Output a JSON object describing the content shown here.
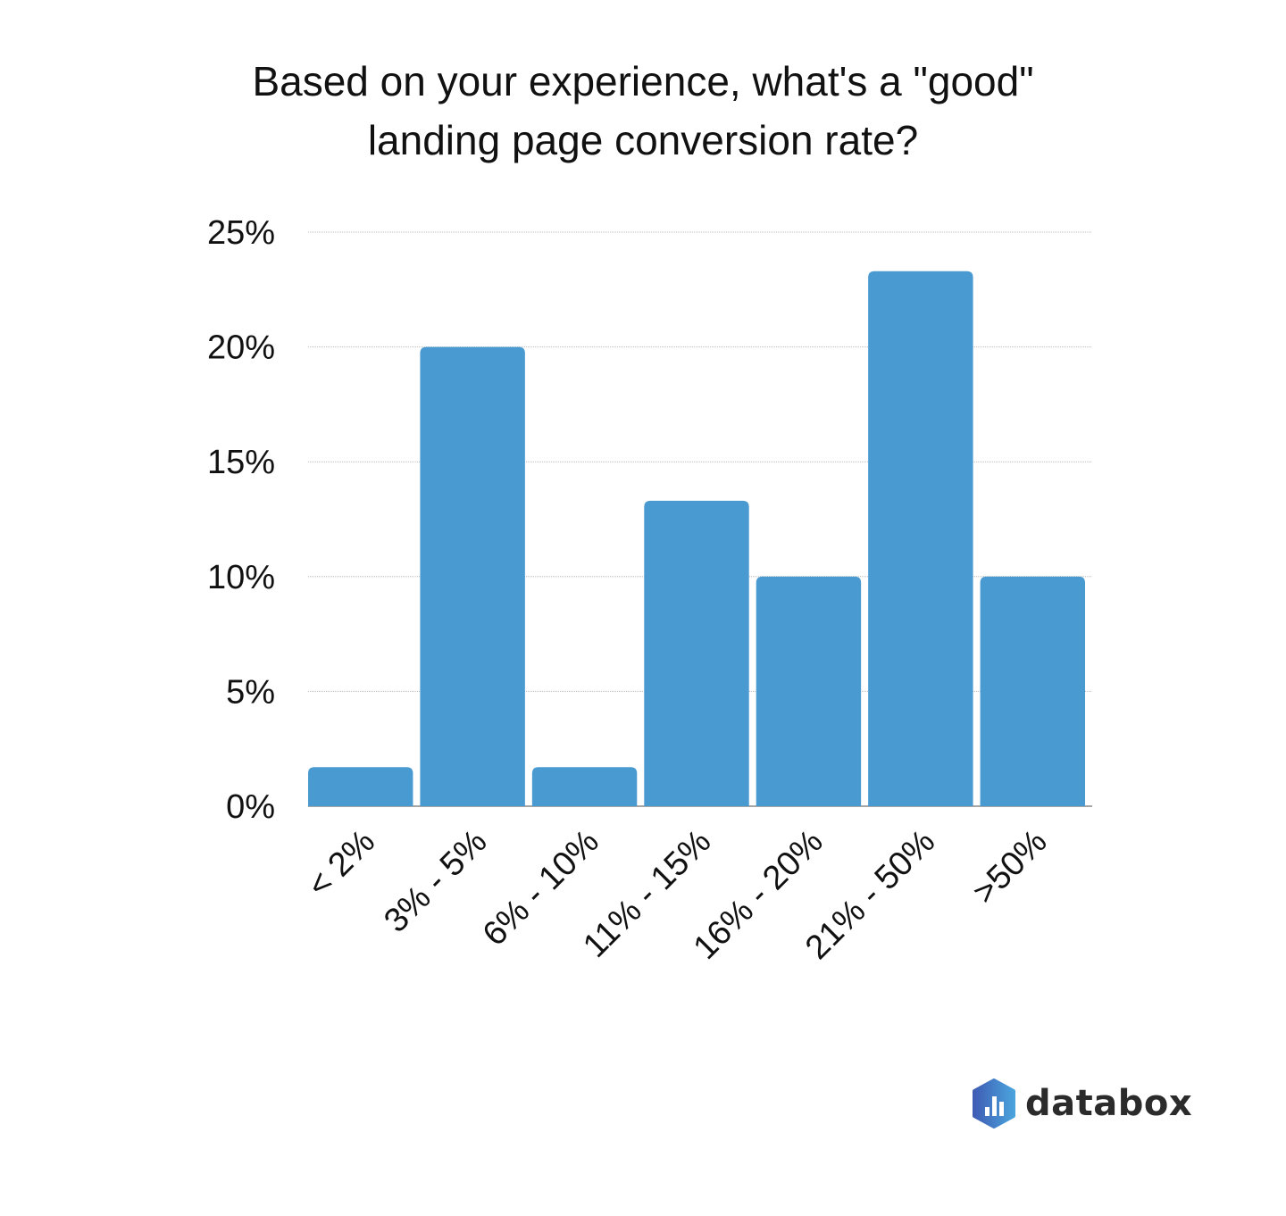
{
  "chart_data": {
    "type": "bar",
    "title_lines": [
      "Based on your experience, what's a \"good\"",
      "landing page conversion rate?"
    ],
    "categories": [
      "< 2%",
      "3% - 5%",
      "6% - 10%",
      "11% - 15%",
      "16% - 20%",
      "21% - 50%",
      ">50%"
    ],
    "values": [
      1.7,
      20,
      1.7,
      13.3,
      10,
      23.3,
      10
    ],
    "ylim": [
      0,
      25
    ],
    "yticks": [
      0,
      5,
      10,
      15,
      20,
      25
    ],
    "ytick_labels": [
      "0%",
      "5%",
      "10%",
      "15%",
      "20%",
      "25%"
    ],
    "xlabel": "",
    "ylabel": "",
    "grid": true,
    "bar_color": "#4a9ad2"
  },
  "branding": {
    "logo_text": "databox"
  }
}
